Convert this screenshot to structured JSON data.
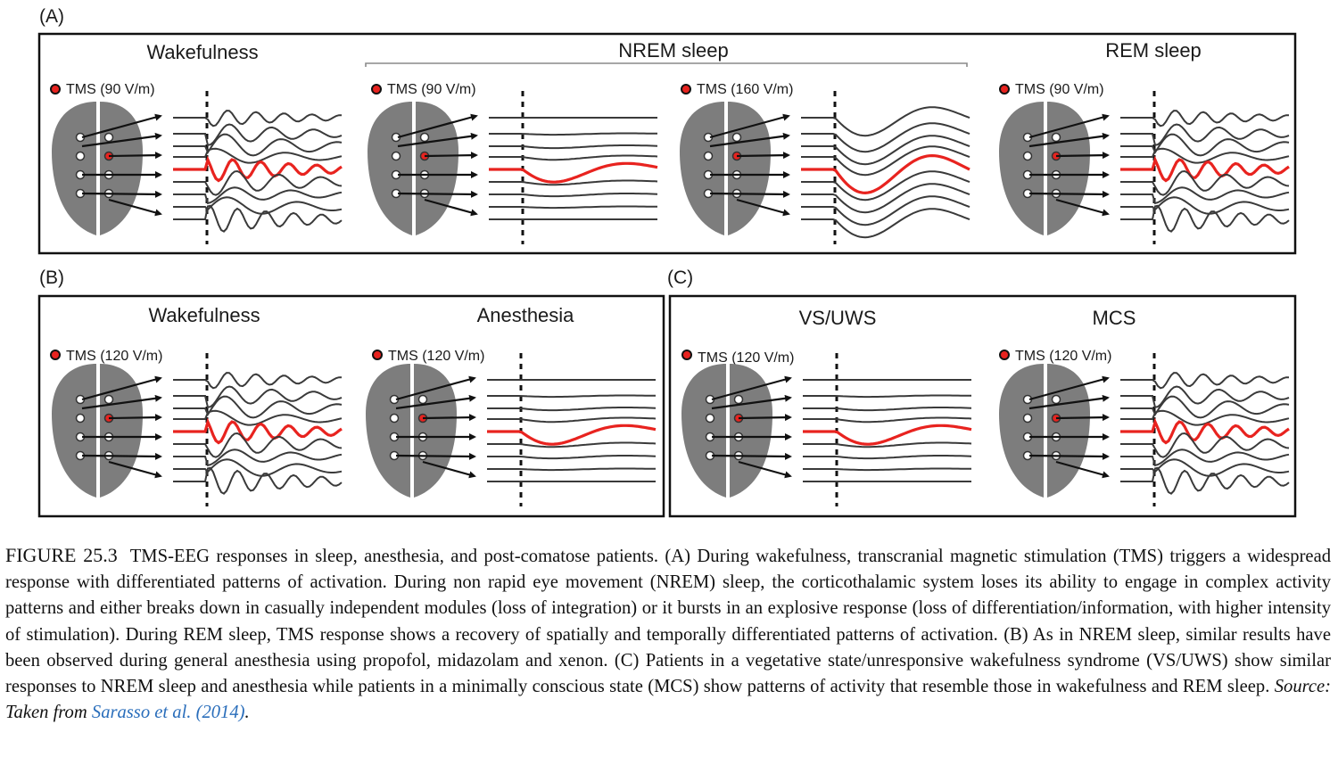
{
  "panels": [
    {
      "letter": "(A)",
      "group": "NREM sleep",
      "conditions": [
        {
          "title": "Wakefulness",
          "tms": "TMS (90 V/m)",
          "pattern": "complex"
        },
        {
          "title": "",
          "tms": "TMS (90 V/m)",
          "pattern": "local"
        },
        {
          "title": "",
          "tms": "TMS (160 V/m)",
          "pattern": "explosive"
        },
        {
          "title": "REM sleep",
          "tms": "TMS (90 V/m)",
          "pattern": "complex"
        }
      ]
    },
    {
      "letter": "(B)",
      "conditions": [
        {
          "title": "Wakefulness",
          "tms": "TMS (120 V/m)",
          "pattern": "complex"
        },
        {
          "title": "Anesthesia",
          "tms": "TMS (120 V/m)",
          "pattern": "local"
        }
      ]
    },
    {
      "letter": "(C)",
      "conditions": [
        {
          "title": "VS/UWS",
          "tms": "TMS (120 V/m)",
          "pattern": "local"
        },
        {
          "title": "MCS",
          "tms": "TMS (120 V/m)",
          "pattern": "complex"
        }
      ]
    }
  ],
  "caption": {
    "figure_number": "FIGURE 25.3",
    "text": "TMS-EEG responses in sleep, anesthesia, and post-comatose patients. (A) During wakefulness, transcranial magnetic stimulation (TMS) triggers a widespread response with differentiated patterns of activation. During non rapid eye movement (NREM) sleep, the corticothalamic system loses its ability to engage in complex activity patterns and either breaks down in casually independent modules (loss of integration) or it bursts in an explosive response (loss of differentiation/information, with higher intensity of stimulation). During REM sleep, TMS response shows a recovery of spatially and temporally differentiated patterns of activation. (B) As in NREM sleep, similar results have been observed during general anesthesia using propofol, midazolam and xenon. (C) Patients in a vegetative state/unresponsive wakefulness syndrome (VS/UWS) show similar responses to NREM sleep and anesthesia while patients in a minimally conscious state (MCS) show patterns of activity that resemble those in wakefulness and REM sleep.",
    "source_prefix": "Source: Taken from",
    "source_ref": "Sarasso et al. (2014)",
    "source_end": "."
  },
  "colors": {
    "stimulated_trace": "#e8231f",
    "trace": "#3a3a3a",
    "brain": "#7d7d7d",
    "frame": "#111111"
  }
}
